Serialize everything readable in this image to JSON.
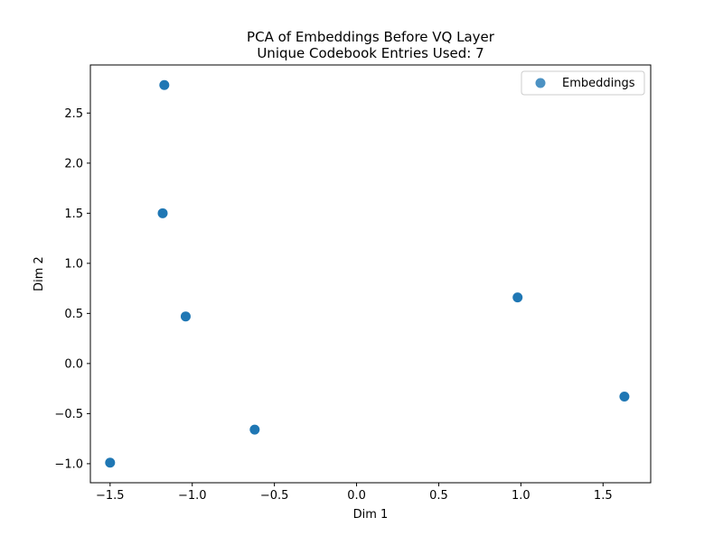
{
  "chart_data": {
    "type": "scatter",
    "title": "PCA of Embeddings Before VQ Layer",
    "subtitle": "Unique Codebook Entries Used: 7",
    "xlabel": "Dim 1",
    "ylabel": "Dim 2",
    "xlim": [
      -1.62,
      1.79
    ],
    "ylim": [
      -1.19,
      2.98
    ],
    "xticks": [
      -1.5,
      -1.0,
      -0.5,
      0.0,
      0.5,
      1.0,
      1.5
    ],
    "xtick_labels": [
      "−1.5",
      "−1.0",
      "−0.5",
      "0.0",
      "0.5",
      "1.0",
      "1.5"
    ],
    "yticks": [
      -1.0,
      -0.5,
      0.0,
      0.5,
      1.0,
      1.5,
      2.0,
      2.5
    ],
    "ytick_labels": [
      "−1.0",
      "−0.5",
      "0.0",
      "0.5",
      "1.0",
      "1.5",
      "2.0",
      "2.5"
    ],
    "grid": false,
    "legend_position": "top-right",
    "series": [
      {
        "name": "Embeddings",
        "color": "#1f77b4",
        "points": [
          {
            "x": -1.17,
            "y": 2.78
          },
          {
            "x": -1.18,
            "y": 1.5
          },
          {
            "x": -1.04,
            "y": 0.47
          },
          {
            "x": 0.98,
            "y": 0.66
          },
          {
            "x": 1.63,
            "y": -0.33
          },
          {
            "x": -0.62,
            "y": -0.66
          },
          {
            "x": -1.5,
            "y": -0.99
          }
        ]
      }
    ]
  }
}
